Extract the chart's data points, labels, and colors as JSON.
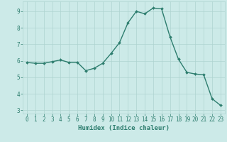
{
  "x": [
    0,
    1,
    2,
    3,
    4,
    5,
    6,
    7,
    8,
    9,
    10,
    11,
    12,
    13,
    14,
    15,
    16,
    17,
    18,
    19,
    20,
    21,
    22,
    23
  ],
  "y": [
    5.9,
    5.85,
    5.85,
    5.95,
    6.05,
    5.9,
    5.9,
    5.4,
    5.55,
    5.85,
    6.45,
    7.1,
    8.3,
    9.0,
    8.85,
    9.2,
    9.15,
    7.45,
    6.1,
    5.3,
    5.2,
    5.15,
    3.7,
    3.3
  ],
  "line_color": "#2d7d6e",
  "marker": "D",
  "marker_size": 2.0,
  "bg_color": "#cceae8",
  "grid_color": "#aed4d0",
  "xlabel": "Humidex (Indice chaleur)",
  "ylim": [
    2.8,
    9.6
  ],
  "xlim": [
    -0.5,
    23.5
  ],
  "yticks": [
    3,
    4,
    5,
    6,
    7,
    8,
    9
  ],
  "xticks": [
    0,
    1,
    2,
    3,
    4,
    5,
    6,
    7,
    8,
    9,
    10,
    11,
    12,
    13,
    14,
    15,
    16,
    17,
    18,
    19,
    20,
    21,
    22,
    23
  ],
  "line_width": 1.0,
  "tick_fontsize": 5.5,
  "xlabel_fontsize": 6.5
}
